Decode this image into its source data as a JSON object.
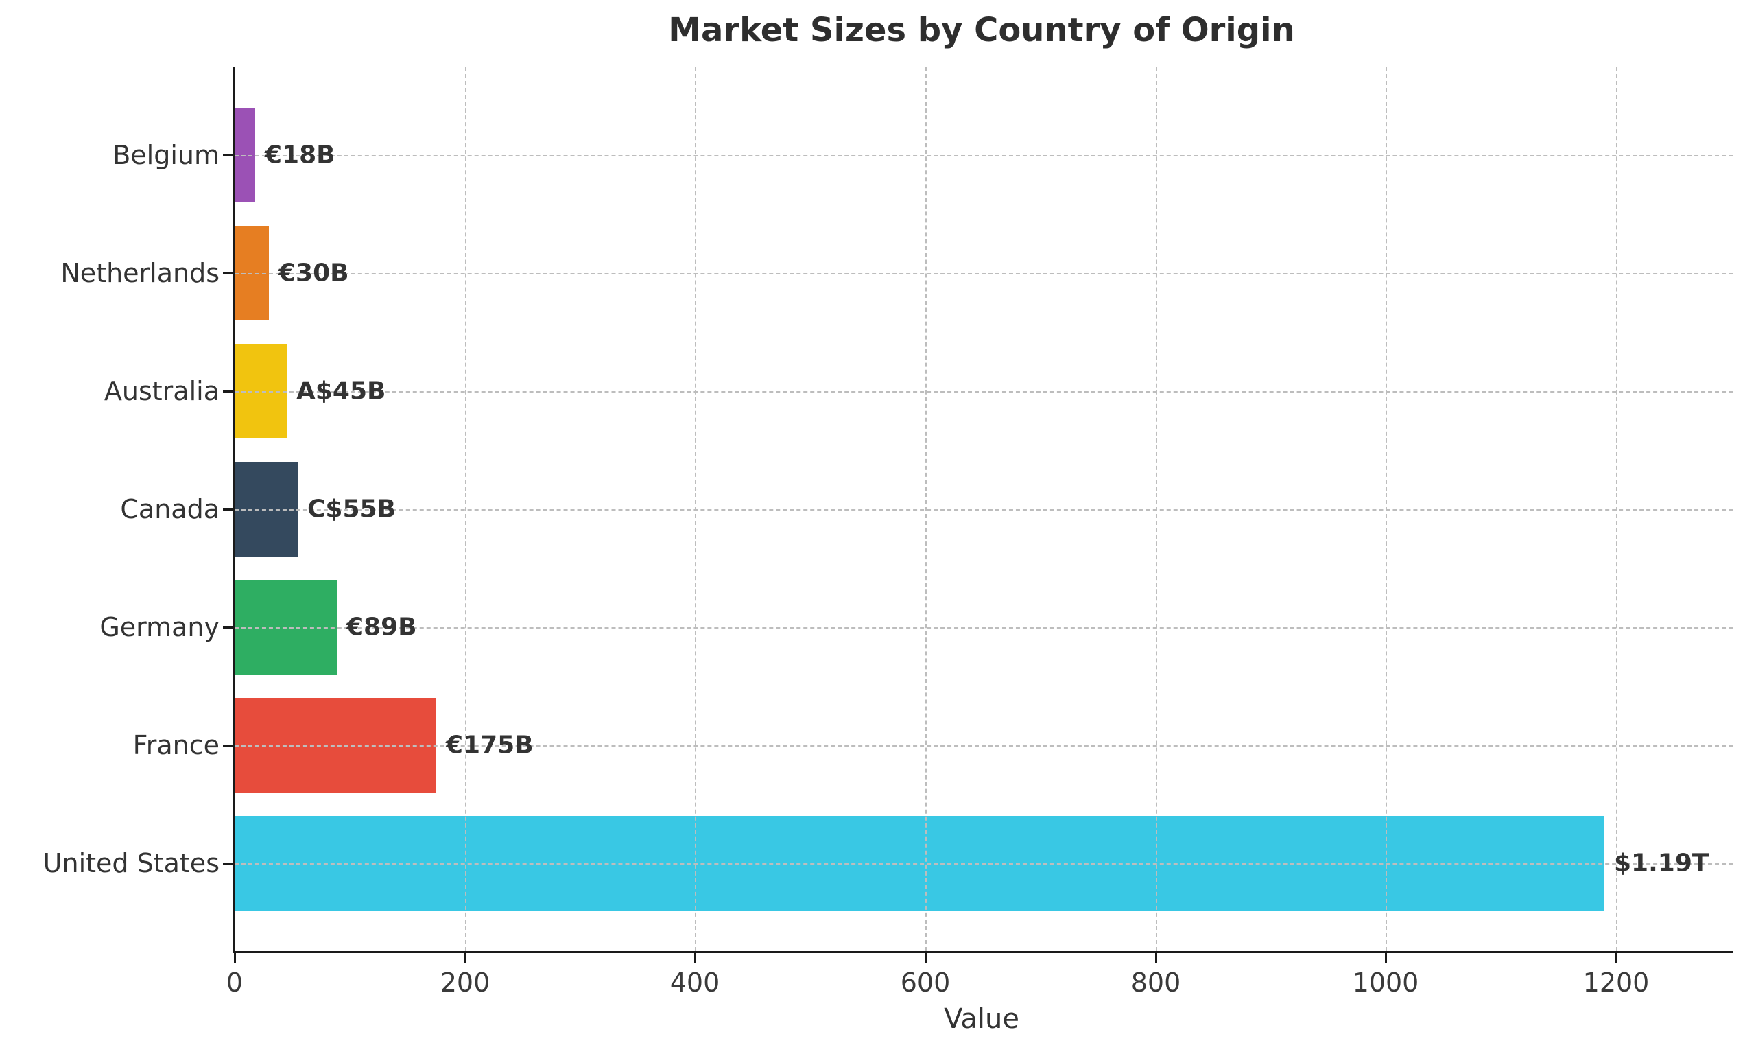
{
  "chart_data": {
    "type": "bar",
    "orientation": "horizontal",
    "title": "Market Sizes by Country of Origin",
    "xlabel": "Value",
    "ylabel": "",
    "categories_top_to_bottom": [
      "Belgium",
      "Netherlands",
      "Australia",
      "Canada",
      "Germany",
      "France",
      "United States"
    ],
    "values": [
      18,
      30,
      45,
      55,
      89,
      175,
      1190
    ],
    "bar_labels": [
      "€18B",
      "€30B",
      "A$45B",
      "C$55B",
      "€89B",
      "€175B",
      "$1.19T"
    ],
    "bar_colors": [
      "#9b51b5",
      "#e67e22",
      "#f1c40f",
      "#34495e",
      "#2eae62",
      "#e74c3c",
      "#39c8e4"
    ],
    "x_ticks": [
      0,
      200,
      400,
      600,
      800,
      1000,
      1200
    ],
    "xlim": [
      0,
      1302
    ],
    "grid": {
      "style": "dashed",
      "axes": "both",
      "color": "#bdbdbd"
    },
    "axis_color": "#1a1a1a",
    "text_color": "#333333",
    "legend": "none"
  }
}
